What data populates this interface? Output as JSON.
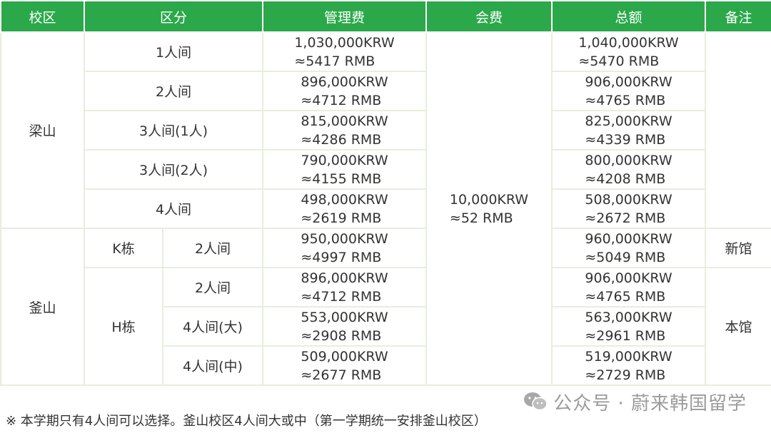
{
  "headers": [
    "校区",
    "区分",
    "管理费",
    "会费",
    "总额",
    "备注"
  ],
  "campuses": {
    "yangsan": "梁山",
    "busan": "釜山"
  },
  "buildings": {
    "k": "K栋",
    "h": "H栋"
  },
  "membership_fee": {
    "krw": "10,000KRW",
    "rmb": "≈52 RMB"
  },
  "remarks": {
    "new": "新馆",
    "main": "本馆"
  },
  "rows": [
    {
      "type": "1人间",
      "mgmt_krw": "1,030,000KRW",
      "mgmt_rmb": "≈5417 RMB",
      "total_krw": "1,040,000KRW",
      "total_rmb": "≈5470 RMB"
    },
    {
      "type": "2人间",
      "mgmt_krw": "896,000KRW",
      "mgmt_rmb": "≈4712 RMB",
      "total_krw": "906,000KRW",
      "total_rmb": "≈4765 RMB"
    },
    {
      "type": "3人间(1人)",
      "mgmt_krw": "815,000KRW",
      "mgmt_rmb": "≈4286 RMB",
      "total_krw": "825,000KRW",
      "total_rmb": "≈4339 RMB"
    },
    {
      "type": "3人间(2人)",
      "mgmt_krw": "790,000KRW",
      "mgmt_rmb": "≈4155 RMB",
      "total_krw": "800,000KRW",
      "total_rmb": "≈4208 RMB"
    },
    {
      "type": "4人间",
      "mgmt_krw": "498,000KRW",
      "mgmt_rmb": "≈2619 RMB",
      "total_krw": "508,000KRW",
      "total_rmb": "≈2672 RMB"
    },
    {
      "type": "2人间",
      "mgmt_krw": "950,000KRW",
      "mgmt_rmb": "≈4997 RMB",
      "total_krw": "960,000KRW",
      "total_rmb": "≈5049 RMB"
    },
    {
      "type": "2人间",
      "mgmt_krw": "896,000KRW",
      "mgmt_rmb": "≈4712 RMB",
      "total_krw": "906,000KRW",
      "total_rmb": "≈4765 RMB"
    },
    {
      "type": "4人间(大)",
      "mgmt_krw": "553,000KRW",
      "mgmt_rmb": "≈2908 RMB",
      "total_krw": "563,000KRW",
      "total_rmb": "≈2961 RMB"
    },
    {
      "type": "4人间(中)",
      "mgmt_krw": "509,000KRW",
      "mgmt_rmb": "≈2677 RMB",
      "total_krw": "519,000KRW",
      "total_rmb": "≈2729 RMB"
    }
  ],
  "footnote": "※ 本学期只有4人间可以选择。釜山校区4人间大或中（第一学期统一安排釜山校区）",
  "watermark": {
    "icon": "wechat-icon",
    "text": "公众号 · 蔚来韩国留学"
  }
}
